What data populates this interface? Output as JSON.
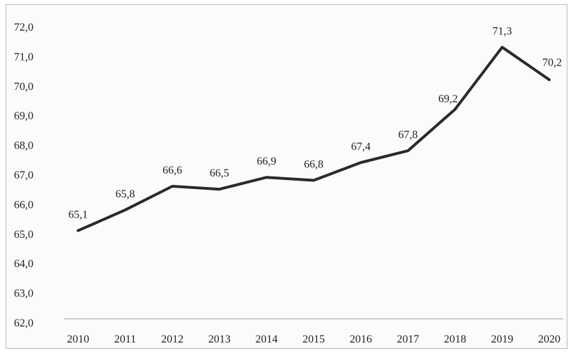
{
  "chart_data": {
    "type": "line",
    "categories": [
      "2010",
      "2011",
      "2012",
      "2013",
      "2014",
      "2015",
      "2016",
      "2017",
      "2018",
      "2019",
      "2020"
    ],
    "series": [
      {
        "values": [
          65.1,
          65.8,
          66.6,
          66.5,
          66.9,
          66.8,
          67.4,
          67.8,
          69.2,
          71.3,
          70.2
        ],
        "labels": [
          "65,1",
          "65,8",
          "66,6",
          "66,5",
          "66,9",
          "66,8",
          "67,4",
          "67,8",
          "69,2",
          "71,3",
          "70,2"
        ],
        "color": "#2a2a2a"
      }
    ],
    "ylim": [
      62.0,
      72.0
    ],
    "yticks": [
      "62,0",
      "63,0",
      "64,0",
      "65,0",
      "66,0",
      "67,0",
      "68,0",
      "69,0",
      "70,0",
      "71,0",
      "72,0"
    ],
    "title": "",
    "xlabel": "",
    "ylabel": "",
    "grid": false,
    "legend": "none"
  }
}
